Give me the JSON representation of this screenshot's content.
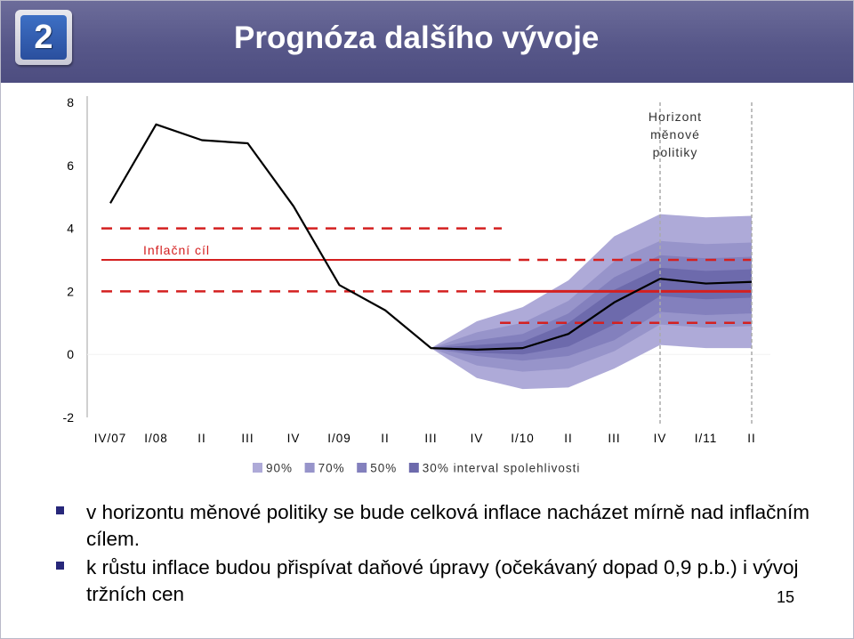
{
  "slide": {
    "badge_number": "2",
    "title": "Prognóza dalšího vývoje",
    "page_number": "15"
  },
  "bullets": [
    "v horizontu měnové politiky se bude celková inflace nacházet mírně nad inflačním cílem.",
    "k růstu inflace budou přispívat daňové úpravy (očekávaný dopad 0,9 p.b.) i vývoj tržních cen"
  ],
  "chart_data": {
    "type": "area",
    "title": "",
    "xlabel": "",
    "ylabel": "",
    "ylim": [
      -2,
      8
    ],
    "y_ticks": [
      8,
      6,
      4,
      2,
      0,
      -2
    ],
    "x_tick_labels": [
      "IV/07",
      "I/08",
      "II",
      "III",
      "IV",
      "I/09",
      "II",
      "III",
      "IV",
      "I/10",
      "II",
      "III",
      "IV",
      "I/11",
      "II"
    ],
    "grid": false,
    "legend_position": "bottom",
    "legend": [
      {
        "label": "90%",
        "color": "#aeaad8"
      },
      {
        "label": "70%",
        "color": "#9794ca"
      },
      {
        "label": "50%",
        "color": "#8380bd"
      },
      {
        "label": "30% interval spolehlivosti",
        "color": "#6d6aac"
      }
    ],
    "inflation_line": {
      "color": "#000000",
      "x": [
        0,
        1,
        2,
        3,
        4,
        5,
        6,
        7,
        8,
        9,
        10,
        11,
        12,
        13,
        14
      ],
      "values": [
        4.8,
        7.3,
        6.8,
        6.7,
        4.7,
        2.2,
        1.4,
        0.2,
        0.15,
        0.2,
        0.65,
        1.65,
        2.4,
        2.25,
        2.3
      ]
    },
    "fan": {
      "x": [
        7,
        8,
        9,
        10,
        11,
        12,
        13,
        14
      ],
      "bands": [
        {
          "interval": "90%",
          "lower": [
            0.2,
            -0.75,
            -1.1,
            -1.05,
            -0.45,
            0.3,
            0.2,
            0.2
          ],
          "upper": [
            0.2,
            1.05,
            1.5,
            2.35,
            3.75,
            4.45,
            4.35,
            4.4
          ],
          "color": "#aeaad8"
        },
        {
          "interval": "70%",
          "lower": [
            0.2,
            -0.35,
            -0.55,
            -0.45,
            0.1,
            0.95,
            0.85,
            0.9
          ],
          "upper": [
            0.2,
            0.7,
            1.0,
            1.7,
            2.95,
            3.6,
            3.5,
            3.55
          ],
          "color": "#9794ca"
        },
        {
          "interval": "50%",
          "lower": [
            0.2,
            -0.05,
            -0.2,
            -0.05,
            0.45,
            1.35,
            1.25,
            1.3
          ],
          "upper": [
            0.2,
            0.45,
            0.65,
            1.3,
            2.45,
            3.15,
            3.05,
            3.1
          ],
          "color": "#8380bd"
        },
        {
          "interval": "30%",
          "lower": [
            0.2,
            0.05,
            0.0,
            0.25,
            0.95,
            1.85,
            1.75,
            1.8
          ],
          "upper": [
            0.2,
            0.3,
            0.4,
            1.0,
            2.05,
            2.75,
            2.65,
            2.7
          ],
          "color": "#6d6aac"
        }
      ]
    },
    "target": {
      "label": "Inflační cíl",
      "color": "#d42020",
      "segments": [
        {
          "x": [
            0,
            8.7
          ],
          "center": 3.0,
          "lower": 2.0,
          "upper": 4.0
        },
        {
          "x": [
            8.7,
            14
          ],
          "center": 2.0,
          "lower": 1.0,
          "upper": 3.0
        }
      ]
    },
    "horizon": {
      "label_lines": [
        "Horizont",
        "měnové",
        "politiky"
      ],
      "x": [
        12,
        14
      ]
    }
  }
}
